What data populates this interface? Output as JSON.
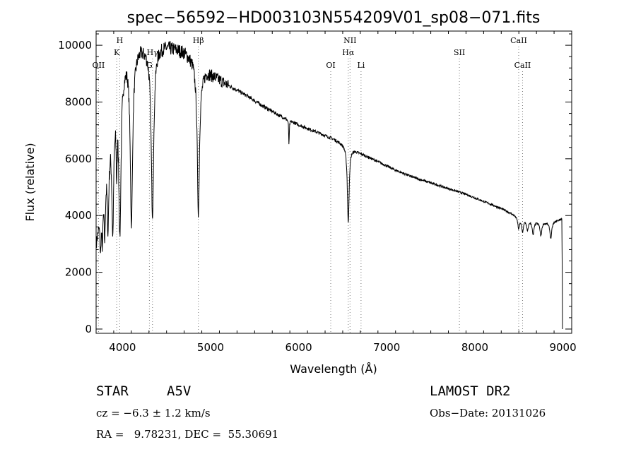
{
  "chart_data": {
    "type": "line",
    "title": "spec−56592−HD003103N554209V01_sp08−071.fits",
    "xlabel": "Wavelength (Å)",
    "ylabel": "Flux (relative)",
    "xlim": [
      3700,
      9100
    ],
    "ylim": [
      -150,
      10500
    ],
    "xticks": [
      4000,
      5000,
      6000,
      7000,
      8000,
      9000
    ],
    "yticks": [
      0,
      2000,
      4000,
      6000,
      8000,
      10000
    ],
    "grid": false,
    "continuum": [
      [
        3700,
        3000
      ],
      [
        3760,
        4600
      ],
      [
        3820,
        6200
      ],
      [
        3880,
        7400
      ],
      [
        3930,
        8300
      ],
      [
        3990,
        9200
      ],
      [
        4050,
        9700
      ],
      [
        4100,
        9700
      ],
      [
        4150,
        9800
      ],
      [
        4200,
        10000
      ],
      [
        4300,
        9900
      ],
      [
        4400,
        10000
      ],
      [
        4500,
        10000
      ],
      [
        4600,
        9900
      ],
      [
        4700,
        9800
      ],
      [
        4800,
        9500
      ],
      [
        4870,
        8800
      ],
      [
        4950,
        9100
      ],
      [
        5050,
        8900
      ],
      [
        5200,
        8600
      ],
      [
        5400,
        8250
      ],
      [
        5600,
        7850
      ],
      [
        5800,
        7500
      ],
      [
        6000,
        7200
      ],
      [
        6200,
        6950
      ],
      [
        6400,
        6700
      ],
      [
        6560,
        6450
      ],
      [
        6700,
        6200
      ],
      [
        6900,
        5900
      ],
      [
        7100,
        5600
      ],
      [
        7300,
        5350
      ],
      [
        7500,
        5150
      ],
      [
        7700,
        4950
      ],
      [
        7900,
        4750
      ],
      [
        8100,
        4500
      ],
      [
        8300,
        4250
      ],
      [
        8500,
        3950
      ],
      [
        8700,
        3800
      ],
      [
        8850,
        3750
      ],
      [
        8950,
        3850
      ],
      [
        8990,
        3900
      ]
    ],
    "absorption_lines": [
      {
        "center": 3750,
        "width": 8,
        "depth": 0.35
      },
      {
        "center": 3771,
        "width": 8,
        "depth": 0.35
      },
      {
        "center": 3798,
        "width": 9,
        "depth": 0.4
      },
      {
        "center": 3835,
        "width": 10,
        "depth": 0.45
      },
      {
        "center": 3889,
        "width": 12,
        "depth": 0.55
      },
      {
        "center": 3933,
        "width": 6,
        "depth": 0.3
      },
      {
        "center": 3970,
        "width": 15,
        "depth": 0.62
      },
      {
        "center": 4101,
        "width": 16,
        "depth": 0.62
      },
      {
        "center": 4340,
        "width": 17,
        "depth": 0.6
      },
      {
        "center": 4861,
        "width": 14,
        "depth": 0.55
      },
      {
        "center": 5890,
        "width": 4,
        "depth": 0.12
      },
      {
        "center": 6563,
        "width": 12,
        "depth": 0.42
      },
      {
        "center": 8498,
        "width": 12,
        "depth": 0.1
      },
      {
        "center": 8542,
        "width": 12,
        "depth": 0.12
      },
      {
        "center": 8598,
        "width": 12,
        "depth": 0.1
      },
      {
        "center": 8662,
        "width": 12,
        "depth": 0.13
      },
      {
        "center": 8750,
        "width": 12,
        "depth": 0.13
      },
      {
        "center": 8863,
        "width": 12,
        "depth": 0.15
      }
    ],
    "spectral_lines": [
      {
        "label": "OII",
        "wavelength": 3727,
        "row": 3
      },
      {
        "label": "H",
        "wavelength": 3968,
        "row": 1
      },
      {
        "label": "K",
        "wavelength": 3934,
        "row": 2
      },
      {
        "label": "G",
        "wavelength": 4305,
        "row": 3
      },
      {
        "label": "Hγ",
        "wavelength": 4340,
        "row": 2
      },
      {
        "label": "Hβ",
        "wavelength": 4861,
        "row": 1
      },
      {
        "label": "OI",
        "wavelength": 6364,
        "row": 3
      },
      {
        "label": "NII",
        "wavelength": 6583,
        "row": 1
      },
      {
        "label": "Hα",
        "wavelength": 6563,
        "row": 2
      },
      {
        "label": "Li",
        "wavelength": 6708,
        "row": 3
      },
      {
        "label": "SII",
        "wavelength": 7825,
        "row": 2
      },
      {
        "label": "CaII",
        "wavelength": 8498,
        "row": 1
      },
      {
        "label": "CaII",
        "wavelength": 8542,
        "row": 3
      }
    ]
  },
  "footer": {
    "object_type": "STAR",
    "subclass": "A5V",
    "survey": "LAMOST DR2",
    "redshift": "cz = −6.3 ± 1.2 km/s",
    "obs_date": "Obs−Date: 20131026",
    "coords": "RA =   9.78231, DEC =  55.30691"
  }
}
